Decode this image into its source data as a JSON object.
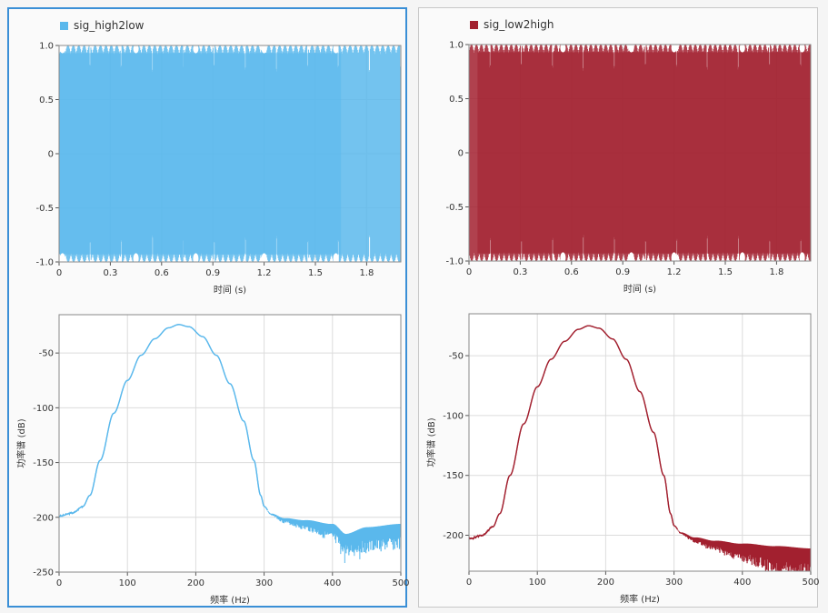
{
  "colors": {
    "left": "#5ab8ec",
    "right": "#a2202f"
  },
  "chart_data": [
    {
      "type": "line",
      "series": [
        {
          "name": "sig_high2low",
          "color": "#5ab8ec"
        }
      ],
      "description_kind": "chirp time signal, frequency decreasing over time, amplitude ±1",
      "xlabel": "时间 (s)",
      "ylabel": "",
      "xlim": [
        0,
        2
      ],
      "ylim": [
        -1.0,
        1.0
      ],
      "xticks": [
        "0",
        "0.3",
        "0.6",
        "0.9",
        "1.2",
        "1.5",
        "1.8"
      ],
      "yticks": [
        "1.0",
        "0.5",
        "0",
        "-0.5",
        "-1.0"
      ],
      "grid": true
    },
    {
      "type": "line",
      "xlabel": "频率 (Hz)",
      "ylabel": "功率谱 (dB)",
      "xlim": [
        0,
        500
      ],
      "ylim": [
        -250,
        -15
      ],
      "xticks": [
        "0",
        "100",
        "200",
        "300",
        "400",
        "500"
      ],
      "yticks": [
        "-50",
        "-100",
        "-150",
        "-200",
        "-250"
      ],
      "x": [
        0,
        20,
        35,
        45,
        60,
        80,
        100,
        120,
        140,
        160,
        175,
        190,
        210,
        230,
        250,
        270,
        285,
        295,
        300,
        310,
        330,
        360,
        400,
        420,
        450,
        500
      ],
      "y": [
        -199,
        -196,
        -190,
        -180,
        -148,
        -105,
        -75,
        -52,
        -37,
        -27,
        -24,
        -26,
        -35,
        -52,
        -78,
        -112,
        -148,
        -180,
        -190,
        -197,
        -202,
        -205,
        -210,
        -220,
        -215,
        -212
      ],
      "grid": true
    },
    {
      "type": "line",
      "series": [
        {
          "name": "sig_low2high",
          "color": "#a2202f"
        }
      ],
      "xlabel": "时间 (s)",
      "ylabel": "",
      "xlim": [
        0,
        2
      ],
      "ylim": [
        -1.0,
        1.0
      ],
      "xticks": [
        "0",
        "0.3",
        "0.6",
        "0.9",
        "1.2",
        "1.5",
        "1.8"
      ],
      "yticks": [
        "1.0",
        "0.5",
        "0",
        "-0.5",
        "-1.0"
      ],
      "grid": true
    },
    {
      "type": "line",
      "xlabel": "频率 (Hz)",
      "ylabel": "功率谱 (dB)",
      "xlim": [
        0,
        500
      ],
      "ylim": [
        -230,
        -15
      ],
      "xticks": [
        "0",
        "100",
        "200",
        "300",
        "400",
        "500"
      ],
      "yticks": [
        "-50",
        "-100",
        "-150",
        "-200"
      ],
      "x": [
        0,
        20,
        35,
        45,
        60,
        80,
        100,
        120,
        140,
        160,
        175,
        190,
        210,
        230,
        250,
        270,
        285,
        295,
        300,
        310,
        330,
        360,
        400,
        450,
        500
      ],
      "y": [
        -203,
        -200,
        -193,
        -182,
        -150,
        -107,
        -76,
        -53,
        -38,
        -28,
        -25,
        -27,
        -36,
        -53,
        -80,
        -114,
        -150,
        -182,
        -192,
        -198,
        -203,
        -207,
        -211,
        -215,
        -217
      ],
      "grid": true
    }
  ]
}
